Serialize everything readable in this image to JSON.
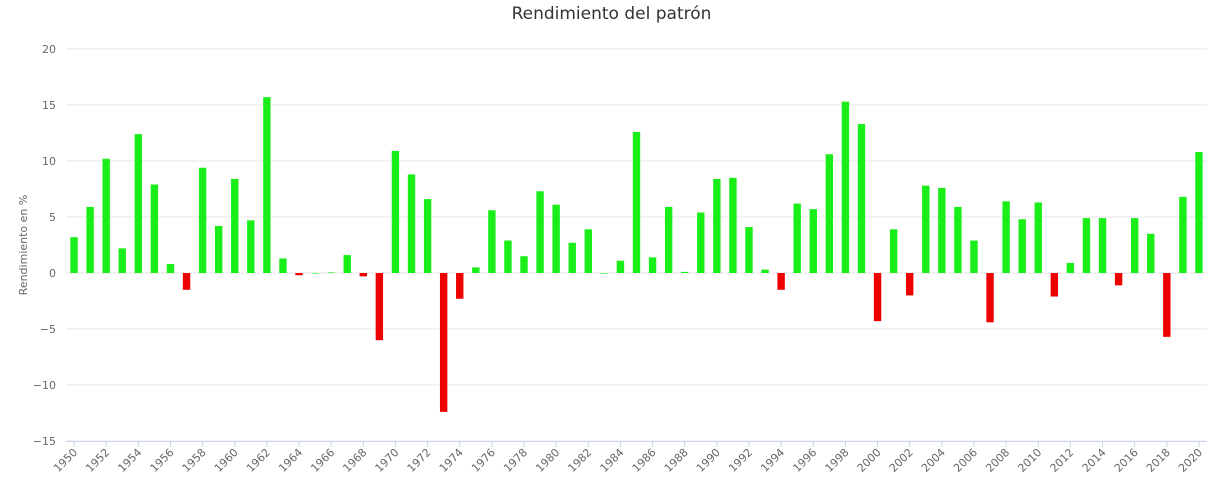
{
  "chart_data": {
    "type": "bar",
    "title": "Rendimiento del patrón",
    "xlabel": "",
    "ylabel": "Rendimiento en %",
    "ylim": [
      -15,
      20
    ],
    "yticks": [
      -15,
      -10,
      -5,
      0,
      5,
      10,
      15,
      20
    ],
    "grid": true,
    "legend": "none",
    "colors": {
      "positive": "#19ee19",
      "negative": "#ee0000",
      "grid": "#e6e6e6",
      "axis": "#ccd6eb"
    },
    "x": [
      1950,
      1951,
      1952,
      1953,
      1954,
      1955,
      1956,
      1957,
      1958,
      1959,
      1960,
      1961,
      1962,
      1963,
      1964,
      1965,
      1966,
      1967,
      1968,
      1969,
      1970,
      1971,
      1972,
      1973,
      1974,
      1975,
      1976,
      1977,
      1978,
      1979,
      1980,
      1981,
      1982,
      1983,
      1984,
      1985,
      1986,
      1987,
      1988,
      1989,
      1990,
      1991,
      1992,
      1993,
      1994,
      1995,
      1996,
      1997,
      1998,
      1999,
      2000,
      2001,
      2002,
      2003,
      2004,
      2005,
      2006,
      2007,
      2008,
      2009,
      2010,
      2011,
      2012,
      2013,
      2014,
      2015,
      2016,
      2017,
      2018,
      2019,
      2020
    ],
    "xtick_labels": [
      "1950",
      "1952",
      "1954",
      "1956",
      "1958",
      "1960",
      "1962",
      "1964",
      "1966",
      "1968",
      "1970",
      "1972",
      "1974",
      "1976",
      "1978",
      "1980",
      "1982",
      "1984",
      "1986",
      "1988",
      "1990",
      "1992",
      "1994",
      "1996",
      "1998",
      "2000",
      "2002",
      "2004",
      "2006",
      "2008",
      "2010",
      "2012",
      "2014",
      "2016",
      "2018",
      "2020"
    ],
    "values": [
      3.2,
      5.9,
      10.2,
      2.2,
      12.4,
      7.9,
      0.8,
      -1.5,
      9.4,
      4.2,
      8.4,
      4.7,
      15.7,
      1.3,
      -0.2,
      0,
      0.05,
      1.6,
      -0.3,
      -6.0,
      10.9,
      8.8,
      6.6,
      -12.4,
      -2.3,
      0.5,
      5.6,
      2.9,
      1.5,
      7.3,
      6.1,
      2.7,
      3.9,
      0,
      1.1,
      12.6,
      1.4,
      5.9,
      0.1,
      5.4,
      8.4,
      8.5,
      4.1,
      0.3,
      -1.5,
      6.2,
      5.7,
      10.6,
      15.3,
      13.3,
      -4.3,
      3.9,
      -2.0,
      7.8,
      7.6,
      5.9,
      2.9,
      -4.4,
      6.4,
      4.8,
      6.3,
      -2.1,
      0.9,
      4.9,
      4.9,
      -1.1,
      4.9,
      3.5,
      -5.7,
      6.8,
      10.8
    ]
  }
}
